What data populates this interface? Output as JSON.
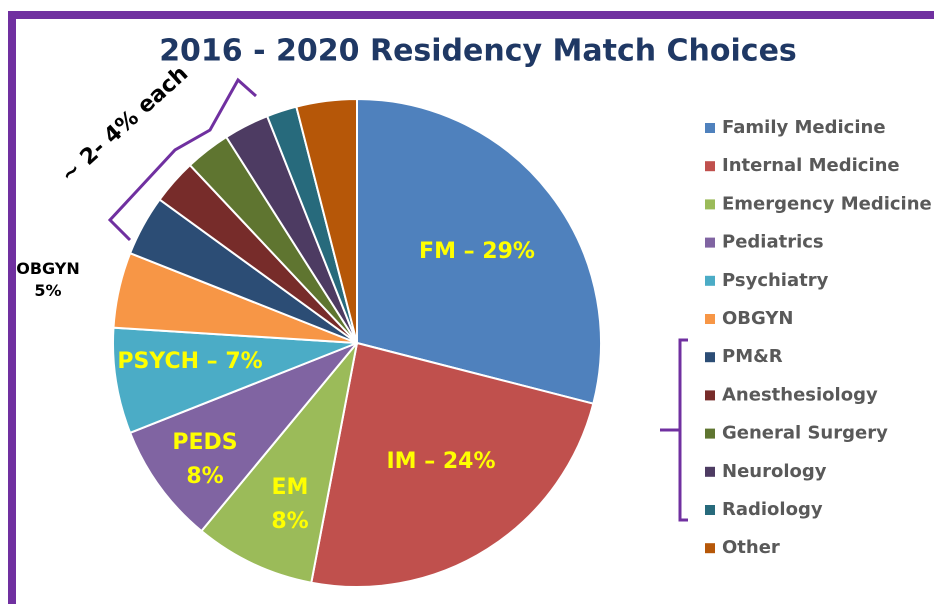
{
  "chart_data": {
    "type": "pie",
    "title": "2016 - 2020 Residency Match Choices",
    "categories": [
      "Family Medicine",
      "Internal Medicine",
      "Emergency Medicine",
      "Pediatrics",
      "Psychiatry",
      "OBGYN",
      "PM&R",
      "Anesthesiology",
      "General Surgery",
      "Neurology",
      "Radiology",
      "Other"
    ],
    "values": [
      29,
      24,
      8,
      8,
      7,
      5,
      4,
      3,
      3,
      3,
      2,
      4
    ],
    "value_labels": [
      "FM – 29%",
      "IM – 24%",
      "EM\n8%",
      "PEDS\n8%",
      "PSYCH – 7%",
      "OBGYN\n5%",
      null,
      null,
      null,
      null,
      null,
      null
    ],
    "colors": [
      "#4f81bd",
      "#c0504d",
      "#9bbb59",
      "#8064a2",
      "#4bacc6",
      "#f79646",
      "#2c4d75",
      "#772c2a",
      "#5f7530",
      "#4d3b62",
      "#276a7c",
      "#b65708"
    ],
    "annotations": [
      "~ 2- 4% each"
    ],
    "legend": "right"
  }
}
